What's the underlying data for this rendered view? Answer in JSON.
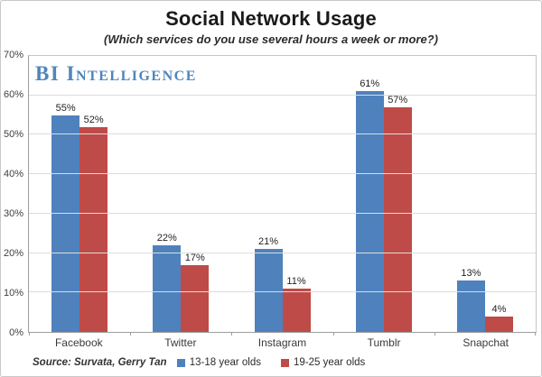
{
  "title": "Social Network Usage",
  "subtitle": "(Which services do you use several hours a week or more?)",
  "watermark": "BI Intelligence",
  "source": "Source: Survata, Gerry Tan",
  "colors": {
    "series1_blue": "#4f81bd",
    "series2_red": "#be4b48",
    "watermark_blue": "#4e86bc",
    "gridline_gray": "#dcdcdc",
    "axis_gray": "#9d9d9d"
  },
  "chart_data": {
    "type": "bar",
    "categories": [
      "Facebook",
      "Twitter",
      "Instagram",
      "Tumblr",
      "Snapchat"
    ],
    "series": [
      {
        "name": "13-18 year olds",
        "color": "#4f81bd",
        "values": [
          55,
          22,
          21,
          61,
          13
        ]
      },
      {
        "name": "19-25 year olds",
        "color": "#be4b48",
        "values": [
          52,
          17,
          11,
          57,
          4
        ]
      }
    ],
    "value_labels": [
      [
        "55%",
        "22%",
        "21%",
        "61%",
        "13%"
      ],
      [
        "52%",
        "17%",
        "11%",
        "57%",
        "4%"
      ]
    ],
    "ylim": [
      0,
      70
    ],
    "ytick_step": 10,
    "ytick_labels": [
      "0%",
      "10%",
      "20%",
      "30%",
      "40%",
      "50%",
      "60%",
      "70%"
    ],
    "grid": true,
    "legend_position": "bottom-center"
  }
}
